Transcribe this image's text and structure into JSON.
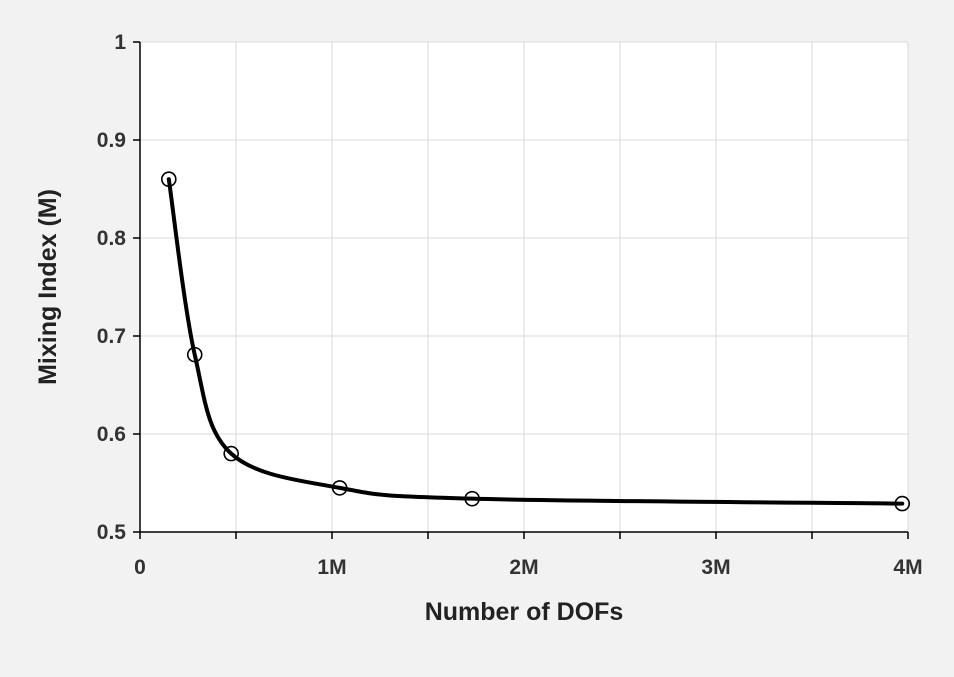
{
  "chart_data": {
    "type": "line",
    "title": "",
    "xlabel": "Number of DOFs",
    "ylabel": "Mixing Index (M)",
    "xlim": [
      0,
      4000000
    ],
    "ylim": [
      0.5,
      1.0
    ],
    "x_ticks": [
      0,
      1000000,
      2000000,
      3000000,
      4000000
    ],
    "x_tick_labels": [
      "0",
      "1M",
      "2M",
      "3M",
      "4M"
    ],
    "x_minor_ticks": [
      500000,
      1500000,
      2500000,
      3500000
    ],
    "y_ticks": [
      0.5,
      0.6,
      0.7,
      0.8,
      0.9,
      1.0
    ],
    "y_tick_labels": [
      "0.5",
      "0.6",
      "0.7",
      "0.8",
      "0.9",
      "1"
    ],
    "grid": true,
    "series": [
      {
        "x": [
          150000,
          285000,
          475000,
          1040000,
          1730000,
          3970000
        ],
        "y": [
          0.86,
          0.681,
          0.58,
          0.545,
          0.534,
          0.529
        ],
        "marker": "open-circle",
        "line_color": "#000000"
      }
    ]
  }
}
